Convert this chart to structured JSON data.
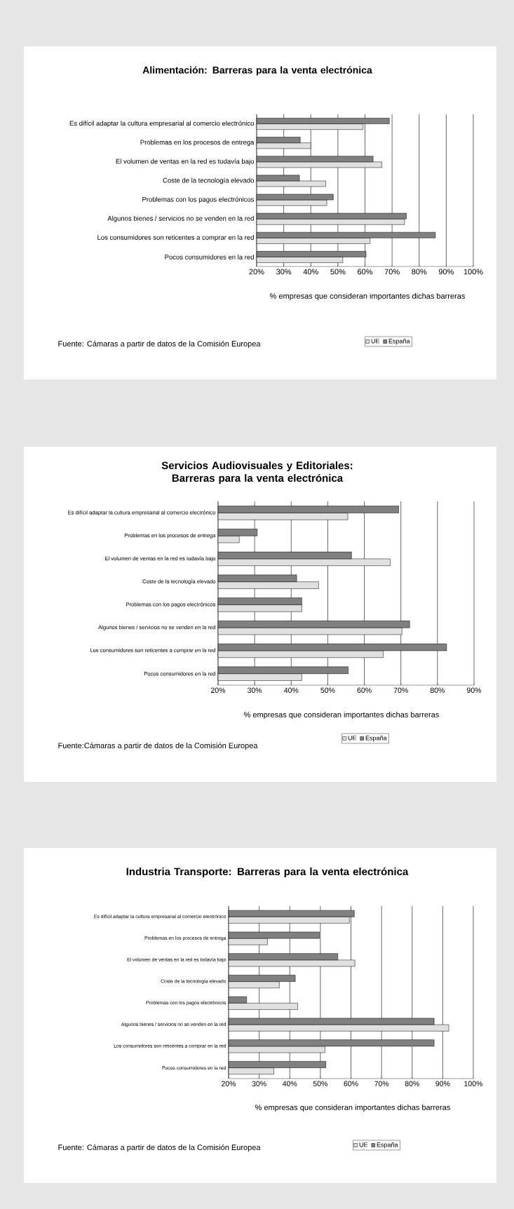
{
  "chart_data": [
    {
      "type": "bar",
      "orientation": "horizontal",
      "title": "Alimentación: Barreras para la venta electrónica",
      "xlabel": "% empresas que consideran importantes dichas barreras",
      "categories": [
        "Es difícil adaptar la cultura empresarial al comercio electrónico",
        "Problemas en los procesos de entrega",
        "El volumen de ventas en la red es todavía bajo",
        "Coste de la tecnología elevado",
        "Problemas con los pagos electrónicos",
        "Algunos bienes / servicios no se venden en la red",
        "Los consumidores son reticentes a comprar en la red",
        "Pocos consumidores en la red"
      ],
      "series": [
        {
          "name": "UE",
          "color": "#e0e0e0",
          "values": [
            59.3,
            40,
            66.2,
            45.5,
            45.9,
            74.6,
            61.9,
            51.8
          ]
        },
        {
          "name": "España",
          "color": "#808080",
          "values": [
            69,
            36.1,
            63,
            35.8,
            48.3,
            75.3,
            86,
            60.4
          ]
        }
      ],
      "xlim": [
        20,
        100
      ],
      "xticks": [
        {
          "value": 20,
          "label": "20%"
        },
        {
          "value": 30,
          "label": "30%"
        },
        {
          "value": 40,
          "label": "40%"
        },
        {
          "value": 50,
          "label": "50%"
        },
        {
          "value": 60,
          "label": "60%"
        },
        {
          "value": 70,
          "label": "70%"
        },
        {
          "value": 80,
          "label": "80%"
        },
        {
          "value": 90,
          "label": "90%"
        },
        {
          "value": 100,
          "label": "100%"
        }
      ],
      "grid": "x",
      "legend": "bottom",
      "annotations": [
        "Fuente: Cámaras a partir de datos de la Comisión Europea"
      ]
    },
    {
      "type": "bar",
      "orientation": "horizontal",
      "title": "Servicios Audiovisuales y Editoriales: Barreras para la venta electrónica",
      "xlabel": "% empresas que consideran importantes dichas barreras",
      "categories": [
        "Es difícil adaptar la cultura empresarial al comercio electrónico",
        "Problemas en los procesos de entrega",
        "El volumen de ventas en la red es todavía bajo",
        "Coste de la tecnología elevado",
        "Problemas con los pagos electrónicos",
        "Algunos bienes / servicios no se venden en la red",
        "Los consumidores son reticentes a comprar en la red",
        "Pocos consumidores en la red"
      ],
      "series": [
        {
          "name": "UE",
          "color": "#e0e0e0",
          "values": [
            55.5,
            25.8,
            67.1,
            47.5,
            42.9,
            70.3,
            65.2,
            42.9
          ]
        },
        {
          "name": "España",
          "color": "#808080",
          "values": [
            69.4,
            30.7,
            56.5,
            41.5,
            42.9,
            72.4,
            82.5,
            55.6
          ]
        }
      ],
      "xlim": [
        20,
        90
      ],
      "xticks": [
        {
          "value": 20,
          "label": "20%"
        },
        {
          "value": 30,
          "label": "30%"
        },
        {
          "value": 40,
          "label": "40%"
        },
        {
          "value": 50,
          "label": "50%"
        },
        {
          "value": 60,
          "label": "60%"
        },
        {
          "value": 70,
          "label": "70%"
        },
        {
          "value": 80,
          "label": "80%"
        },
        {
          "value": 90,
          "label": "90%"
        }
      ],
      "grid": "x",
      "legend": "bottom",
      "annotations": [
        "Fuente:Cámaras a partir de datos de la Comisión Europea"
      ]
    },
    {
      "type": "bar",
      "orientation": "horizontal",
      "title": "Industria Transporte: Barreras para la venta electrónica",
      "xlabel": "% empresas que consideran importantes dichas barreras",
      "categories": [
        "Es difícil adaptar la cultura empresarial al comercio electrónico",
        "Problemas en los procesos de entrega",
        "El volumen de ventas en la red es todavía bajo",
        "Coste de la tecnología elevado",
        "Problemas con los pagos electrónicos",
        "Algunos bienes / servicios no se venden en la red",
        "Los consumidores son reticentes a comprar en la red",
        "Pocos consumidores en la red"
      ],
      "series": [
        {
          "name": "UE",
          "color": "#e0e0e0",
          "values": [
            59.5,
            32.7,
            61.3,
            36.6,
            42.6,
            92,
            51.5,
            34.8
          ]
        },
        {
          "name": "España",
          "color": "#808080",
          "values": [
            61.1,
            49.7,
            55.7,
            41.8,
            25.9,
            87.2,
            87.2,
            51.8
          ]
        }
      ],
      "xlim": [
        20,
        100
      ],
      "xticks": [
        {
          "value": 20,
          "label": "20%"
        },
        {
          "value": 30,
          "label": "30%"
        },
        {
          "value": 40,
          "label": "40%"
        },
        {
          "value": 50,
          "label": "50%"
        },
        {
          "value": 60,
          "label": "60%"
        },
        {
          "value": 70,
          "label": "70%"
        },
        {
          "value": 80,
          "label": "80%"
        },
        {
          "value": 90,
          "label": "90%"
        },
        {
          "value": 100,
          "label": "100%"
        }
      ],
      "grid": "x",
      "legend": "bottom",
      "annotations": [
        "Fuente: Cámaras a partir de datos de la Comisión Europea"
      ]
    }
  ]
}
